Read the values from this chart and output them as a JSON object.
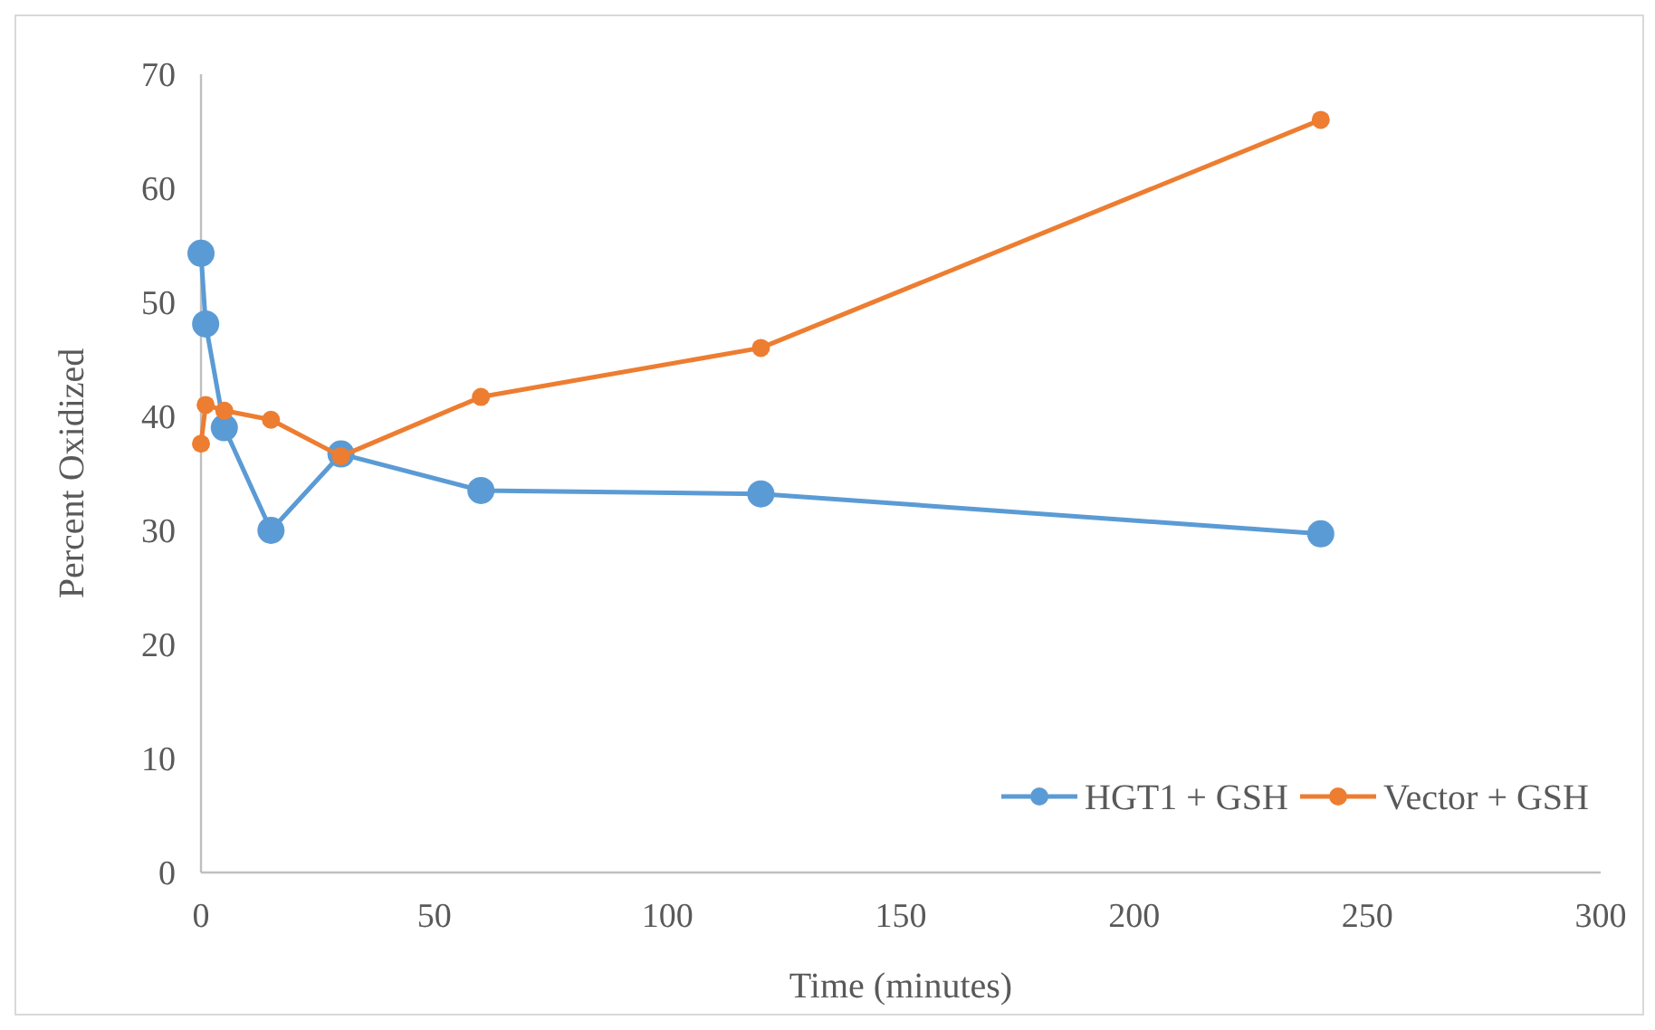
{
  "chart_data": {
    "type": "line",
    "xlabel": "Time (minutes)",
    "ylabel": "Percent Oxidized",
    "x": [
      0,
      1,
      5,
      15,
      30,
      60,
      120,
      240
    ],
    "series": [
      {
        "name": "HGT1 + GSH",
        "color": "#5b9bd5",
        "values": [
          54.3,
          48.1,
          39.0,
          30.0,
          36.7,
          33.5,
          33.2,
          29.7
        ]
      },
      {
        "name": "Vector + GSH",
        "color": "#ed7d31",
        "values": [
          37.6,
          41.0,
          40.5,
          39.7,
          36.5,
          41.7,
          46.0,
          66.0
        ]
      }
    ],
    "xlim": [
      0,
      300
    ],
    "xticks": [
      0,
      50,
      100,
      150,
      200,
      250,
      300
    ],
    "ylim": [
      0,
      70
    ],
    "yticks": [
      0,
      10,
      20,
      30,
      40,
      50,
      60,
      70
    ],
    "grid": false,
    "legend": "bottom right",
    "marker": "circle",
    "line_style": "solid"
  }
}
